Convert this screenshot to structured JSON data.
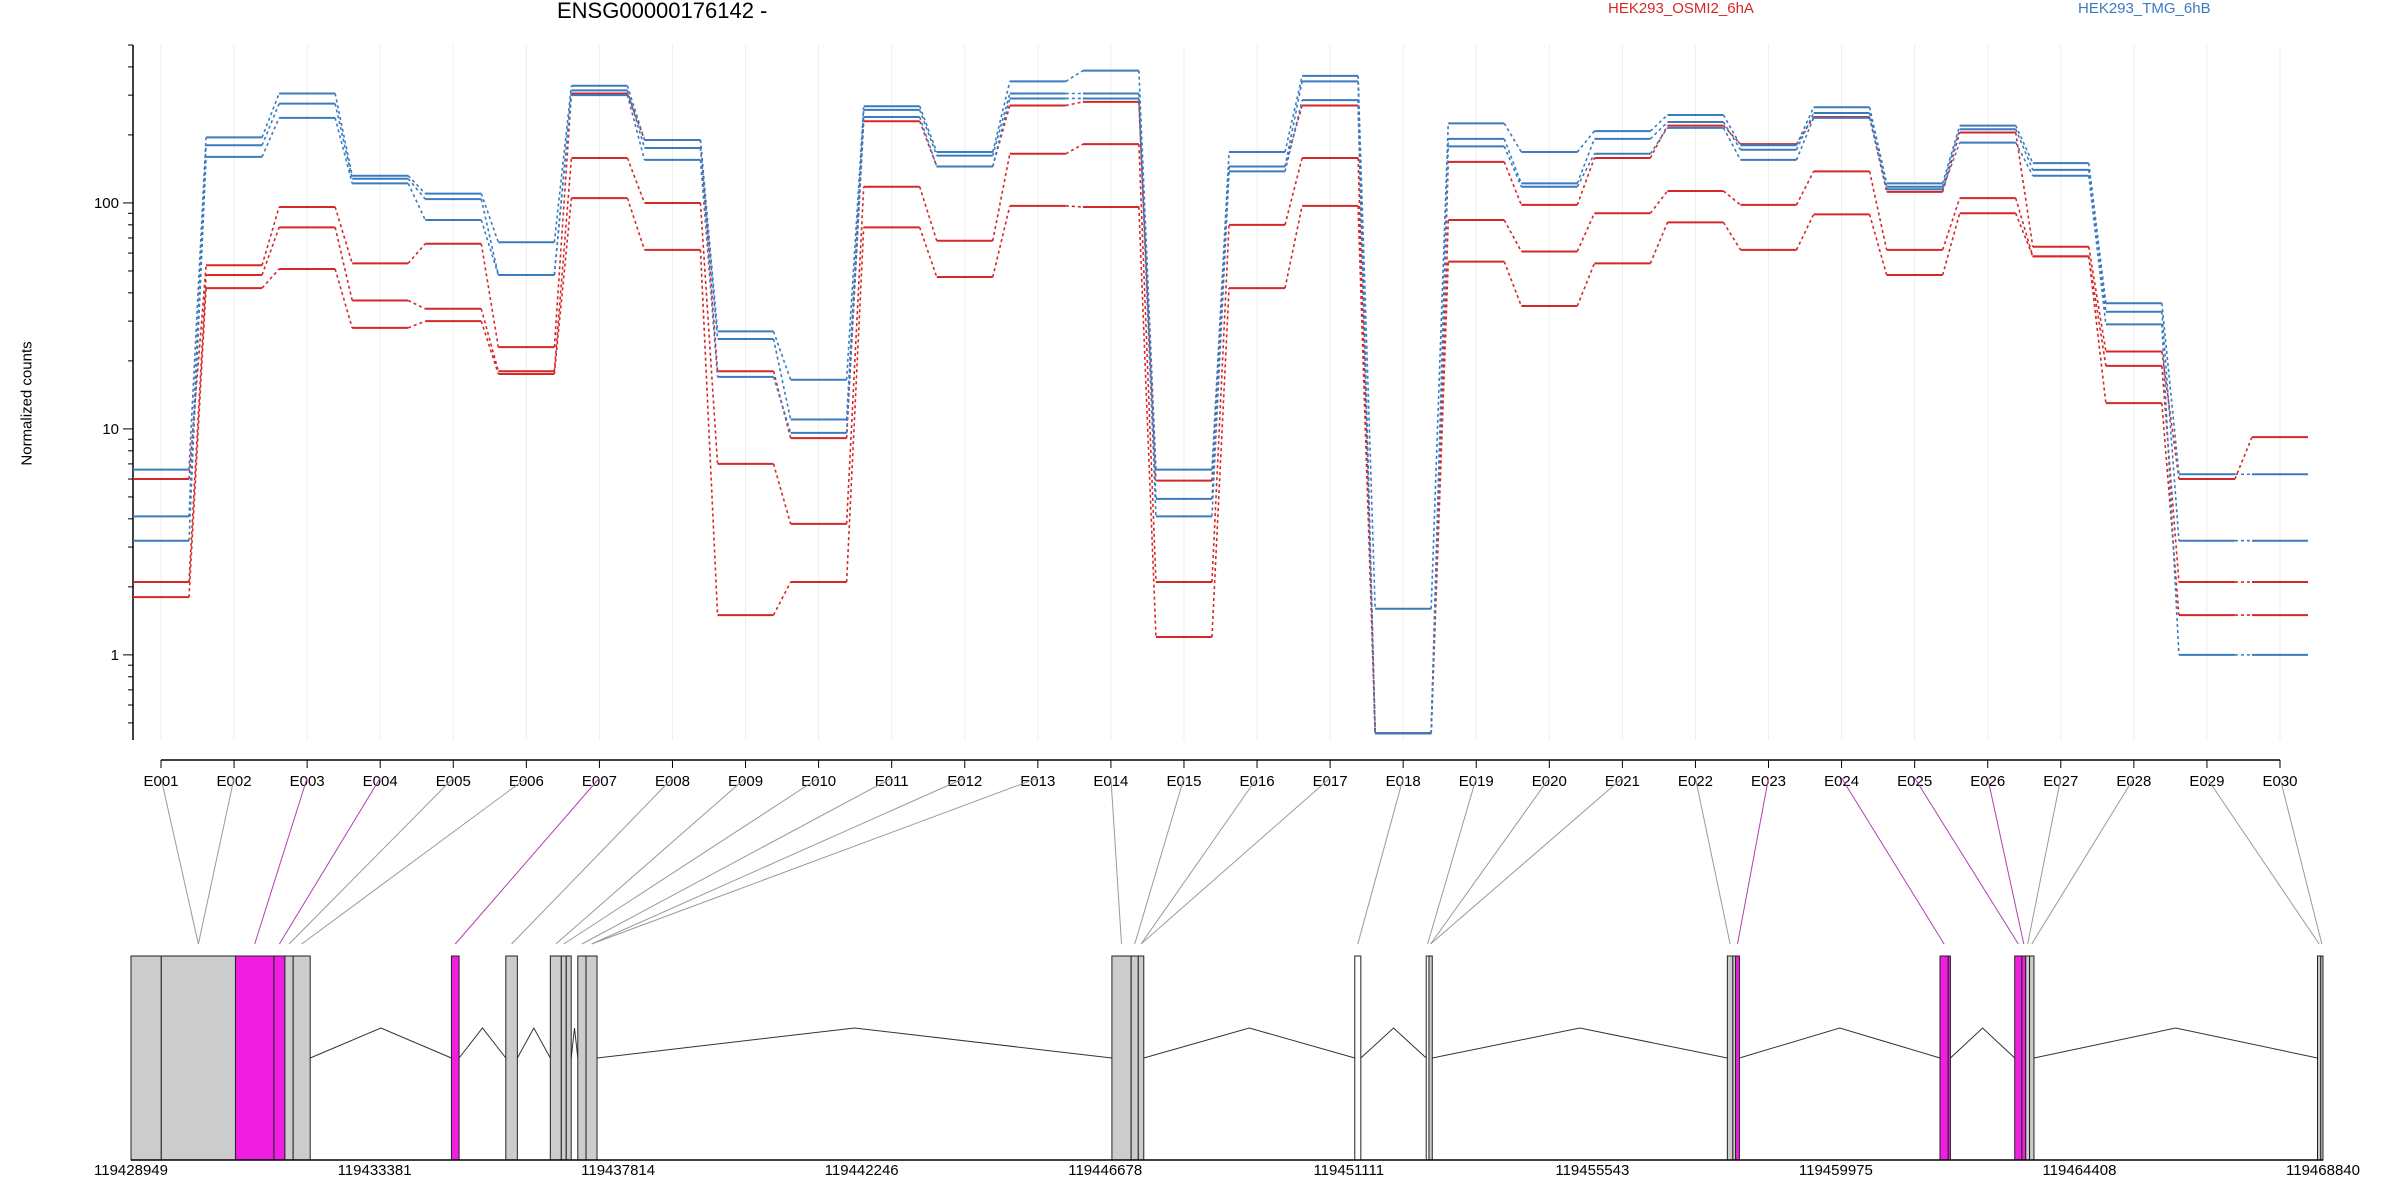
{
  "chart_data": {
    "type": "line",
    "title": "ENSG00000176142 -",
    "ylabel": "Normalized counts",
    "y_scale": "log",
    "ylim": [
      0.42,
      500
    ],
    "y_ticks": [
      {
        "value": 100,
        "label": "100"
      },
      {
        "value": 10,
        "label": "10"
      },
      {
        "value": 1,
        "label": "1"
      }
    ],
    "legend": [
      {
        "label": "HEK293_OSMI2_6hA",
        "color": "#d62728"
      },
      {
        "label": "HEK293_TMG_6hB",
        "color": "#3a7bbf"
      }
    ],
    "categories": [
      "E001",
      "E002",
      "E003",
      "E004",
      "E005",
      "E006",
      "E007",
      "E008",
      "E009",
      "E010",
      "E011",
      "E012",
      "E013",
      "E014",
      "E015",
      "E016",
      "E017",
      "E018",
      "E019",
      "E020",
      "E021",
      "E022",
      "E023",
      "E024",
      "E025",
      "E026",
      "E027",
      "E028",
      "E029",
      "E030"
    ],
    "series": [
      {
        "group": "HEK293_OSMI2_6hA",
        "color": "#d62728",
        "values": [
          6,
          53,
          96,
          54,
          66,
          23,
          305,
          190,
          18,
          9.1,
          230,
          145,
          270,
          280,
          5.9,
          145,
          270,
          0.45,
          152,
          98,
          158,
          220,
          182,
          240,
          112,
          205,
          64,
          22,
          6,
          9.2
        ]
      },
      {
        "group": "HEK293_OSMI2_6hA",
        "color": "#d62728",
        "values": [
          2.1,
          48,
          78,
          37,
          34,
          18,
          158,
          100,
          7,
          3.8,
          118,
          68,
          165,
          182,
          2.1,
          80,
          158,
          0.45,
          84,
          61,
          90,
          113,
          98,
          138,
          62,
          105,
          58,
          19,
          2.1,
          2.1
        ]
      },
      {
        "group": "HEK293_OSMI2_6hA",
        "color": "#d62728",
        "values": [
          1.8,
          42,
          51,
          28,
          30,
          17.5,
          105,
          62,
          1.5,
          2.1,
          78,
          47,
          97,
          96,
          1.2,
          42,
          97,
          0.45,
          55,
          35,
          54,
          82,
          62,
          89,
          48,
          90,
          58,
          13,
          1.5,
          1.5
        ]
      },
      {
        "group": "HEK293_TMG_6hB",
        "color": "#3a7bbf",
        "values": [
          6.6,
          195,
          305,
          132,
          110,
          67,
          330,
          190,
          27,
          16.5,
          268,
          168,
          345,
          385,
          6.6,
          168,
          365,
          1.6,
          225,
          168,
          208,
          245,
          180,
          265,
          122,
          220,
          150,
          36,
          6.3,
          6.3
        ]
      },
      {
        "group": "HEK293_TMG_6hB",
        "color": "#3a7bbf",
        "values": [
          4.1,
          180,
          275,
          128,
          104,
          48,
          315,
          175,
          25,
          11,
          258,
          162,
          305,
          305,
          4.9,
          145,
          345,
          0.45,
          192,
          122,
          192,
          228,
          172,
          250,
          118,
          212,
          140,
          33,
          3.2,
          3.2
        ]
      },
      {
        "group": "HEK293_TMG_6hB",
        "color": "#3a7bbf",
        "values": [
          3.2,
          160,
          238,
          122,
          84,
          48,
          300,
          155,
          17,
          9.6,
          240,
          145,
          290,
          290,
          4.1,
          138,
          285,
          0.45,
          178,
          118,
          165,
          215,
          155,
          238,
          115,
          185,
          132,
          29,
          1,
          1
        ]
      }
    ],
    "gene_axis": {
      "tick_labels": [
        "119428949",
        "119433381",
        "119437814",
        "119442246",
        "119446678",
        "119451111",
        "119455543",
        "119459975",
        "119464408",
        "119468840"
      ],
      "range": [
        119428949,
        119468840
      ]
    },
    "exons": [
      {
        "id": "E001",
        "start": 119428949,
        "end": 119429500,
        "fill": "#cccccc"
      },
      {
        "id": "E002",
        "start": 119429500,
        "end": 119430850,
        "fill": "#cccccc"
      },
      {
        "id": "E003",
        "start": 119430850,
        "end": 119431550,
        "fill": "#f01ee0"
      },
      {
        "id": "E004",
        "start": 119431550,
        "end": 119431750,
        "fill": "#f01ee0"
      },
      {
        "id": "E005",
        "start": 119431750,
        "end": 119431900,
        "fill": "#cccccc"
      },
      {
        "id": "E006",
        "start": 119431900,
        "end": 119432210,
        "fill": "#cccccc"
      },
      {
        "id": "E007",
        "start": 119434780,
        "end": 119434920,
        "fill": "#f01ee0"
      },
      {
        "id": "E008",
        "start": 119435770,
        "end": 119435980,
        "fill": "#cccccc"
      },
      {
        "id": "E009",
        "start": 119436580,
        "end": 119436780,
        "fill": "#cccccc"
      },
      {
        "id": "E010",
        "start": 119436780,
        "end": 119436870,
        "fill": "#cccccc"
      },
      {
        "id": "E011",
        "start": 119436870,
        "end": 119436960,
        "fill": "#cccccc"
      },
      {
        "id": "E012",
        "start": 119437080,
        "end": 119437230,
        "fill": "#cccccc"
      },
      {
        "id": "E013",
        "start": 119437230,
        "end": 119437430,
        "fill": "#cccccc"
      },
      {
        "id": "E014",
        "start": 119446800,
        "end": 119447150,
        "fill": "#cccccc"
      },
      {
        "id": "E015",
        "start": 119447150,
        "end": 119447280,
        "fill": "#cccccc"
      },
      {
        "id": "E016",
        "start": 119447280,
        "end": 119447380,
        "fill": "#cccccc"
      },
      {
        "id": "E017",
        "start": 119451220,
        "end": 119451330,
        "fill": "#ffffff"
      },
      {
        "id": "E018",
        "start": 119452520,
        "end": 119452570,
        "fill": "#ffffff"
      },
      {
        "id": "E019",
        "start": 119452570,
        "end": 119452630,
        "fill": "#cccccc"
      },
      {
        "id": "E020",
        "start": 119458000,
        "end": 119458100,
        "fill": "#cccccc"
      },
      {
        "id": "E021",
        "start": 119458100,
        "end": 119458150,
        "fill": "#cccccc"
      },
      {
        "id": "E022",
        "start": 119458150,
        "end": 119458220,
        "fill": "#f01ee0"
      },
      {
        "id": "E023",
        "start": 119461870,
        "end": 119462020,
        "fill": "#f01ee0"
      },
      {
        "id": "E024",
        "start": 119462020,
        "end": 119462060,
        "fill": "#f01ee0"
      },
      {
        "id": "E025",
        "start": 119463230,
        "end": 119463360,
        "fill": "#f01ee0"
      },
      {
        "id": "E026",
        "start": 119463360,
        "end": 119463430,
        "fill": "#f01ee0"
      },
      {
        "id": "E027",
        "start": 119463430,
        "end": 119463500,
        "fill": "#cccccc"
      },
      {
        "id": "E028",
        "start": 119463500,
        "end": 119463580,
        "fill": "#cccccc"
      },
      {
        "id": "E029",
        "start": 119468740,
        "end": 119468800,
        "fill": "#cccccc"
      },
      {
        "id": "E030",
        "start": 119468800,
        "end": 119468840,
        "fill": "#cccccc"
      }
    ],
    "exon_links": [
      "E002",
      "E002",
      "E003",
      "E004",
      "E005",
      "E006",
      "E007",
      "E008",
      "E009",
      "E010",
      "E012",
      "E013",
      "E013",
      "E014",
      "E015",
      "E016",
      "E016",
      "E017",
      "E018",
      "E019",
      "E019",
      "E020",
      "E022",
      "E023",
      "E025",
      "E026",
      "E027",
      "E028",
      "E029",
      "E030"
    ]
  }
}
